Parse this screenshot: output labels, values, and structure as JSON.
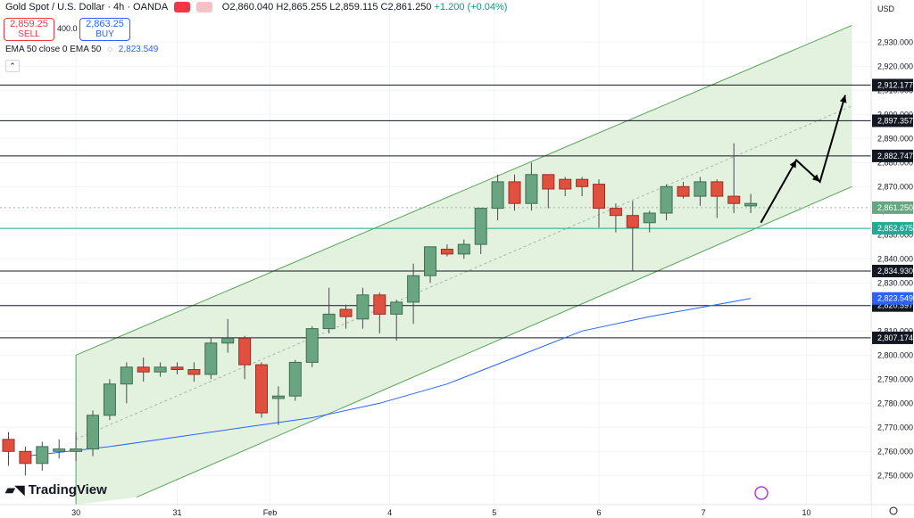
{
  "header": {
    "symbol": "Gold Spot / U.S. Dollar · 4h · OANDA",
    "ohlc": "O2,860.040 H2,865.255 L2,859.115 C2,861.250",
    "change": "+1.200 (+0.04%)"
  },
  "trade": {
    "sell_price": "2,859.25",
    "sell_label": "SELL",
    "spread": "400.0",
    "buy_price": "2,863.25",
    "buy_label": "BUY"
  },
  "indicator": {
    "label": "EMA 50 close 0 EMA 50",
    "value": "2,823.549"
  },
  "brand": "TradingView",
  "colors": {
    "bull": "#6aa582",
    "bear": "#e0503f",
    "ema": "#2962ff",
    "channel_fill": "#e3f1df",
    "channel_line": "#57a657",
    "grid": "#f0f3fa"
  },
  "chart_data": {
    "type": "candlestick",
    "currency_label": "USD",
    "ylim": [
      2740,
      2945
    ],
    "y_ticks": [
      2750,
      2760,
      2770,
      2780,
      2790,
      2800,
      2810,
      2820,
      2830,
      2840,
      2850,
      2860,
      2870,
      2880,
      2890,
      2900,
      2910,
      2920,
      2930
    ],
    "y_tick_labels": [
      "2,750.000",
      "2,760.000",
      "2,770.000",
      "2,780.000",
      "2,790.000",
      "2,800.000",
      "2,810.000",
      "2,820.000",
      "2,830.000",
      "2,840.000",
      "2,850.000",
      "2,860.000",
      "2,870.000",
      "2,880.000",
      "2,890.000",
      "2,900.000",
      "2,910.000",
      "2,920.000",
      "2,930.000"
    ],
    "x_ticks": [
      {
        "label": "30",
        "bar": 4
      },
      {
        "label": "31",
        "bar": 10
      },
      {
        "label": "Feb",
        "bar": 15.5
      },
      {
        "label": "4",
        "bar": 22.6
      },
      {
        "label": "5",
        "bar": 28.8
      },
      {
        "label": "6",
        "bar": 35
      },
      {
        "label": "7",
        "bar": 41.2
      },
      {
        "label": "10",
        "bar": 47.3
      }
    ],
    "candles": [
      [
        2765,
        2768,
        2754,
        2760
      ],
      [
        2760,
        2762,
        2750,
        2755
      ],
      [
        2755,
        2764,
        2752,
        2762
      ],
      [
        2760,
        2765,
        2757,
        2761
      ],
      [
        2760,
        2768,
        2756,
        2761
      ],
      [
        2761,
        2777,
        2758,
        2775
      ],
      [
        2775,
        2790,
        2773,
        2788
      ],
      [
        2788,
        2797,
        2780,
        2795
      ],
      [
        2795,
        2799,
        2789,
        2793
      ],
      [
        2793,
        2797,
        2791,
        2795
      ],
      [
        2795,
        2797,
        2792,
        2794
      ],
      [
        2794,
        2797,
        2789,
        2792
      ],
      [
        2792,
        2807,
        2790,
        2805
      ],
      [
        2805,
        2815,
        2801,
        2807
      ],
      [
        2807,
        2808,
        2790,
        2796
      ],
      [
        2796,
        2797,
        2774,
        2776
      ],
      [
        2782,
        2787,
        2771,
        2783
      ],
      [
        2783,
        2798,
        2781,
        2797
      ],
      [
        2797,
        2812,
        2795,
        2811
      ],
      [
        2811,
        2828,
        2809,
        2817
      ],
      [
        2819,
        2821,
        2811,
        2816
      ],
      [
        2815,
        2828,
        2811,
        2825
      ],
      [
        2825,
        2826,
        2809,
        2817
      ],
      [
        2817,
        2823,
        2806,
        2822
      ],
      [
        2822,
        2838,
        2813,
        2833
      ],
      [
        2833,
        2845,
        2830,
        2845
      ],
      [
        2844,
        2846,
        2841,
        2842
      ],
      [
        2842,
        2848,
        2840,
        2846
      ],
      [
        2846,
        2861,
        2842,
        2861
      ],
      [
        2861,
        2875,
        2856,
        2872
      ],
      [
        2872,
        2875,
        2860,
        2863
      ],
      [
        2863,
        2880,
        2860,
        2875
      ],
      [
        2875,
        2875,
        2861,
        2869
      ],
      [
        2873,
        2874,
        2866,
        2869
      ],
      [
        2873,
        2874,
        2866,
        2870
      ],
      [
        2871,
        2873,
        2853,
        2861
      ],
      [
        2861,
        2863,
        2851,
        2858
      ],
      [
        2858,
        2864,
        2835,
        2853
      ],
      [
        2855,
        2860,
        2851,
        2859
      ],
      [
        2859,
        2871,
        2856,
        2870
      ],
      [
        2870,
        2872,
        2865,
        2866
      ],
      [
        2866,
        2874,
        2862,
        2872
      ],
      [
        2872,
        2873,
        2857,
        2866
      ],
      [
        2866,
        2888,
        2859,
        2863
      ],
      [
        2862,
        2867,
        2859,
        2863
      ]
    ],
    "ema50": [
      [
        1,
        2758
      ],
      [
        6,
        2762
      ],
      [
        10,
        2766
      ],
      [
        14,
        2770
      ],
      [
        18,
        2774
      ],
      [
        22,
        2780
      ],
      [
        26,
        2788
      ],
      [
        30,
        2799
      ],
      [
        34,
        2810
      ],
      [
        38,
        2816
      ],
      [
        42,
        2821
      ],
      [
        44,
        2823.549
      ]
    ],
    "horizontal_levels": [
      {
        "value": 2912.177,
        "label": "2,912.177",
        "color": "#131722"
      },
      {
        "value": 2897.357,
        "label": "2,897.357",
        "color": "#131722"
      },
      {
        "value": 2882.747,
        "label": "2,882.747",
        "color": "#131722"
      },
      {
        "value": 2852.675,
        "label": "2,852.675",
        "color": "#22ab94"
      },
      {
        "value": 2834.93,
        "label": "2,834.930",
        "color": "#131722"
      },
      {
        "value": 2820.597,
        "label": "2,820.597",
        "color": "#131722"
      },
      {
        "value": 2807.174,
        "label": "2,807.174",
        "color": "#131722"
      }
    ],
    "last_price": {
      "value": 2861.25,
      "label": "2,861.250",
      "color": "#6aa582"
    },
    "ema_label": {
      "value": 2823.549,
      "label": "2,823.549",
      "color": "#2962ff"
    },
    "channel": {
      "lower": [
        [
          7.6,
          2741
        ],
        [
          50,
          2870
        ]
      ],
      "upper": [
        [
          4,
          2800
        ],
        [
          50,
          2937
        ]
      ],
      "fill_start_bar": 4
    },
    "projection": [
      [
        44.6,
        2855
      ],
      [
        46.7,
        2881
      ],
      [
        48.1,
        2872
      ],
      [
        49.6,
        2908
      ]
    ]
  }
}
